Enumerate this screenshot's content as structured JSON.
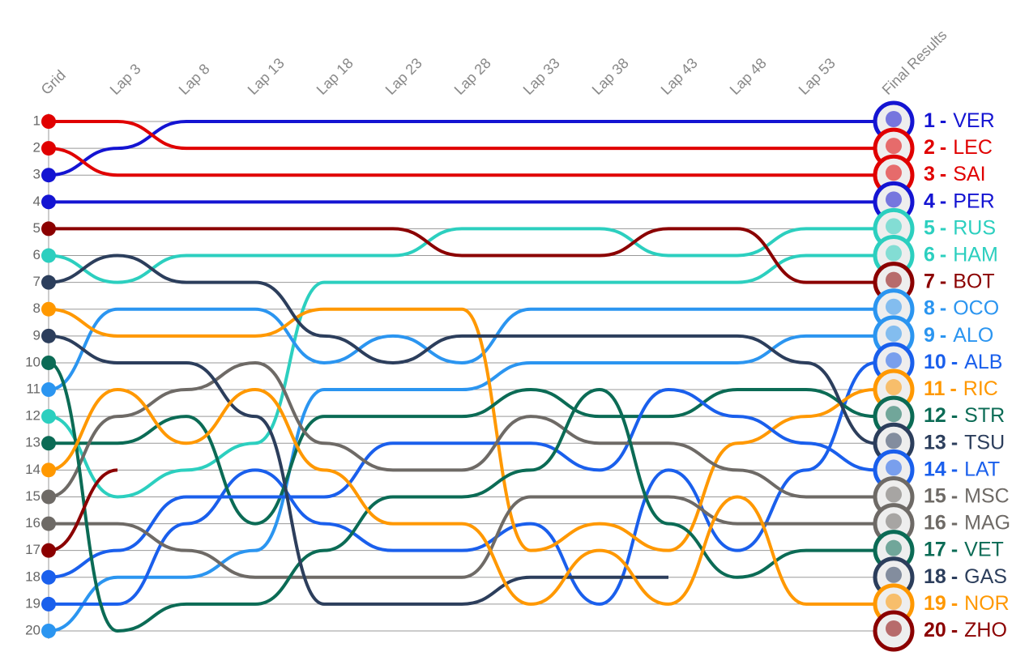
{
  "chart_data": {
    "type": "bump",
    "x": [
      "Grid",
      "Lap 3",
      "Lap 8",
      "Lap 13",
      "Lap 18",
      "Lap 23",
      "Lap 28",
      "Lap 33",
      "Lap 38",
      "Lap 43",
      "Lap 48",
      "Lap 53",
      "Final Results"
    ],
    "ylim": [
      1,
      20
    ],
    "y_reversed": true,
    "yticks": [
      1,
      2,
      3,
      4,
      5,
      6,
      7,
      8,
      9,
      10,
      11,
      12,
      13,
      14,
      15,
      16,
      17,
      18,
      19,
      20
    ],
    "separator": "-",
    "series": [
      {
        "name": "VER",
        "color": "#1414d2",
        "values": [
          3,
          2,
          1,
          1,
          1,
          1,
          1,
          1,
          1,
          1,
          1,
          1,
          1
        ]
      },
      {
        "name": "LEC",
        "color": "#e00000",
        "values": [
          1,
          1,
          2,
          2,
          2,
          2,
          2,
          2,
          2,
          2,
          2,
          2,
          2
        ]
      },
      {
        "name": "SAI",
        "color": "#e00000",
        "values": [
          2,
          3,
          3,
          3,
          3,
          3,
          3,
          3,
          3,
          3,
          3,
          3,
          3
        ]
      },
      {
        "name": "PER",
        "color": "#1414d2",
        "values": [
          4,
          4,
          4,
          4,
          4,
          4,
          4,
          4,
          4,
          4,
          4,
          4,
          4
        ]
      },
      {
        "name": "RUS",
        "color": "#2ccfbf",
        "values": [
          6,
          7,
          6,
          6,
          6,
          6,
          5,
          5,
          5,
          6,
          6,
          5,
          5
        ]
      },
      {
        "name": "HAM",
        "color": "#2ccfbf",
        "values": [
          12,
          15,
          14,
          13,
          7,
          7,
          7,
          7,
          7,
          7,
          7,
          6,
          6
        ]
      },
      {
        "name": "BOT",
        "color": "#8b0000",
        "values": [
          5,
          5,
          5,
          5,
          5,
          5,
          6,
          6,
          6,
          5,
          5,
          7,
          7
        ]
      },
      {
        "name": "OCO",
        "color": "#2b95f0",
        "values": [
          11,
          8,
          8,
          8,
          10,
          9,
          10,
          8,
          8,
          8,
          8,
          8,
          8
        ]
      },
      {
        "name": "ALO",
        "color": "#2b95f0",
        "values": [
          20,
          18,
          18,
          17,
          11,
          11,
          11,
          10,
          10,
          10,
          10,
          9,
          9
        ]
      },
      {
        "name": "ALB",
        "color": "#1a5fec",
        "values": [
          19,
          19,
          16,
          14,
          16,
          17,
          17,
          16,
          19,
          14,
          17,
          14,
          10
        ]
      },
      {
        "name": "RIC",
        "color": "#ff9800",
        "values": [
          8,
          9,
          9,
          9,
          8,
          8,
          8,
          17,
          16,
          17,
          13,
          12,
          11
        ]
      },
      {
        "name": "STR",
        "color": "#0b6b55",
        "values": [
          13,
          13,
          12,
          16,
          12,
          12,
          12,
          11,
          12,
          12,
          11,
          11,
          12
        ]
      },
      {
        "name": "TSU",
        "color": "#2c3e5c",
        "values": [
          7,
          6,
          7,
          7,
          9,
          10,
          9,
          9,
          9,
          9,
          9,
          10,
          13
        ]
      },
      {
        "name": "LAT",
        "color": "#1a5fec",
        "values": [
          18,
          17,
          15,
          15,
          15,
          13,
          13,
          13,
          14,
          11,
          12,
          13,
          14
        ]
      },
      {
        "name": "MSC",
        "color": "#6e6a66",
        "values": [
          15,
          12,
          11,
          10,
          13,
          14,
          14,
          12,
          13,
          13,
          14,
          15,
          15
        ]
      },
      {
        "name": "MAG",
        "color": "#6e6a66",
        "values": [
          16,
          16,
          17,
          18,
          18,
          18,
          18,
          15,
          15,
          15,
          16,
          16,
          16
        ]
      },
      {
        "name": "VET",
        "color": "#0b6b55",
        "values": [
          10,
          20,
          19,
          19,
          17,
          15,
          15,
          14,
          11,
          16,
          18,
          17,
          17
        ]
      },
      {
        "name": "GAS",
        "color": "#2c3e5c",
        "values": [
          9,
          10,
          10,
          12,
          19,
          19,
          19,
          18,
          18,
          18,
          null,
          null,
          18
        ]
      },
      {
        "name": "NOR",
        "color": "#ff9800",
        "values": [
          14,
          11,
          13,
          11,
          14,
          16,
          16,
          19,
          17,
          19,
          15,
          19,
          19
        ]
      },
      {
        "name": "ZHO",
        "color": "#8b0000",
        "values": [
          17,
          14,
          null,
          null,
          null,
          null,
          null,
          null,
          null,
          null,
          null,
          null,
          20
        ]
      }
    ]
  }
}
